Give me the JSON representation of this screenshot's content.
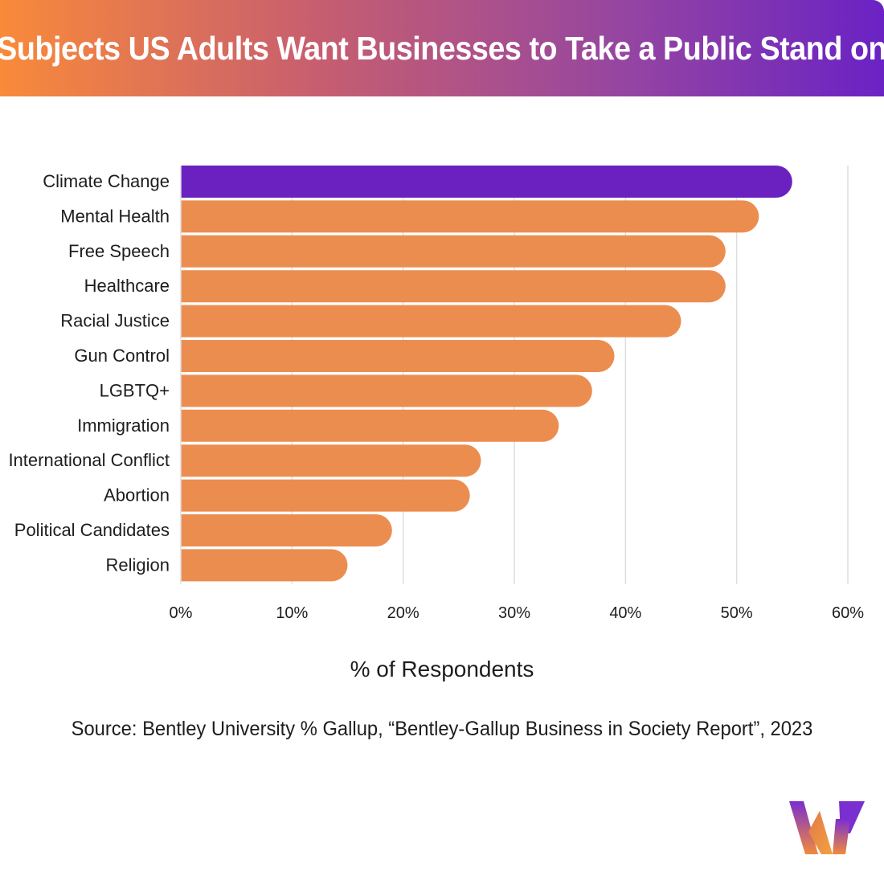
{
  "title": "Subjects US Adults Want Businesses to Take a Public Stand on",
  "source": "Source: Bentley University % Gallup, “Bentley-Gallup Business in Society Report”, 2023",
  "colors": {
    "highlight": "#6b21c0",
    "bar": "#ec8d50",
    "grid": "#dedede"
  },
  "logo": {
    "icon": "brand-w-logo"
  },
  "chart_data": {
    "type": "bar",
    "orientation": "horizontal",
    "title": "Subjects US Adults Want Businesses to Take a Public Stand on",
    "xlabel": "% of Respondents",
    "ylabel": "",
    "xlim": [
      0,
      60
    ],
    "xticks": [
      0,
      10,
      20,
      30,
      40,
      50,
      60
    ],
    "tick_suffix": "%",
    "categories": [
      "Climate Change",
      "Mental Health",
      "Free Speech",
      "Healthcare",
      "Racial Justice",
      "Gun Control",
      "LGBTQ+",
      "Immigration",
      "International Conflict",
      "Abortion",
      "Political Candidates",
      "Religion"
    ],
    "values": [
      55,
      52,
      49,
      49,
      45,
      39,
      37,
      34,
      27,
      26,
      19,
      15
    ],
    "highlight_index": 0,
    "grid": true
  }
}
